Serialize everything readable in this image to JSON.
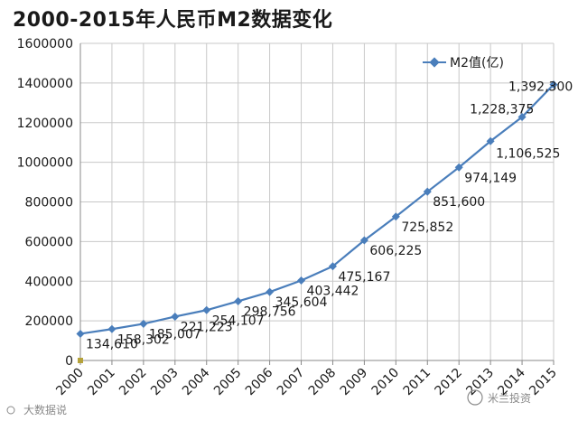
{
  "chart_data": {
    "type": "line",
    "title": "2000-2015年人民币M2数据变化",
    "categories": [
      "2000",
      "2001",
      "2002",
      "2003",
      "2004",
      "2005",
      "2006",
      "2007",
      "2008",
      "2009",
      "2010",
      "2011",
      "2012",
      "2013",
      "2014",
      "2015"
    ],
    "series": [
      {
        "name": "M2值(亿)",
        "color": "#4a7ebb",
        "values": [
          134610,
          158302,
          185007,
          221223,
          254107,
          298756,
          345604,
          403442,
          475167,
          606225,
          725852,
          851600,
          974149,
          1106525,
          1228375,
          1392300
        ],
        "labels": [
          "134,610",
          "158,302",
          "185,007",
          "221,223",
          "254,107",
          "298,756",
          "345,604",
          "403,442",
          "475,167",
          "606,225",
          "725,852",
          "851,600",
          "974,149",
          "1,106,525",
          "1,228,375",
          "1,392,300"
        ]
      }
    ],
    "ylim": [
      0,
      1600000
    ],
    "y_ticks": [
      "0",
      "200000",
      "400000",
      "600000",
      "800000",
      "1000000",
      "1200000",
      "1400000",
      "1600000"
    ],
    "grid": true,
    "legend_position": "top-right"
  },
  "watermarks": {
    "left": "大数据说",
    "right": "米兰投资"
  }
}
